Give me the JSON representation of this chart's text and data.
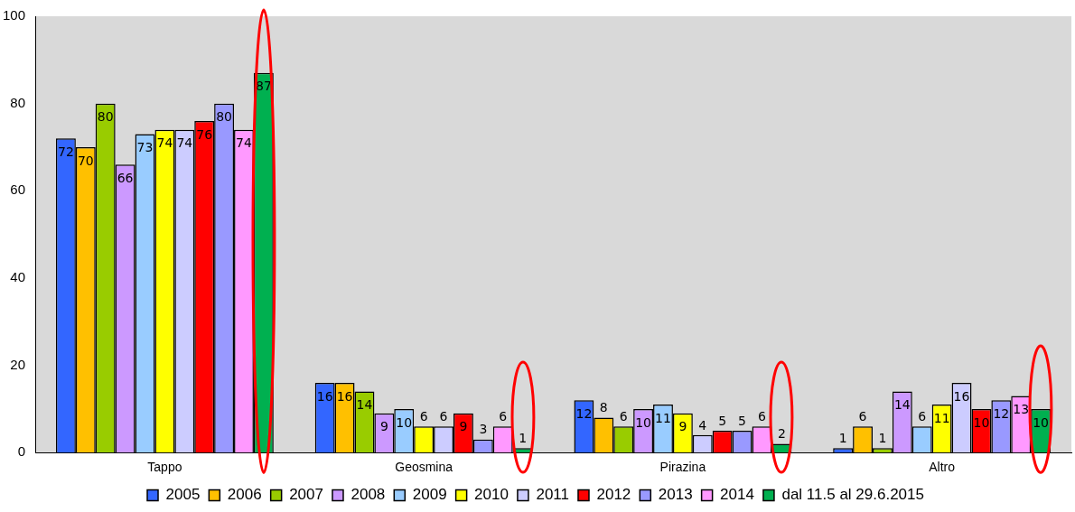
{
  "chart_data": {
    "type": "bar",
    "categories": [
      "Tappo",
      "Geosmina",
      "Pirazina",
      "Altro"
    ],
    "series": [
      {
        "name": "2005",
        "color": "#3366ff",
        "values": [
          72,
          16,
          12,
          1
        ]
      },
      {
        "name": "2006",
        "color": "#ffc000",
        "values": [
          70,
          16,
          8,
          6
        ]
      },
      {
        "name": "2007",
        "color": "#99cc00",
        "values": [
          80,
          14,
          6,
          1
        ]
      },
      {
        "name": "2008",
        "color": "#cc99ff",
        "values": [
          66,
          9,
          10,
          14
        ]
      },
      {
        "name": "2009",
        "color": "#99ccff",
        "values": [
          73,
          10,
          11,
          6
        ]
      },
      {
        "name": "2010",
        "color": "#ffff00",
        "values": [
          74,
          6,
          9,
          11
        ]
      },
      {
        "name": "2011",
        "color": "#ccccff",
        "values": [
          74,
          6,
          4,
          16
        ]
      },
      {
        "name": "2012",
        "color": "#ff0000",
        "values": [
          76,
          9,
          5,
          10
        ]
      },
      {
        "name": "2013",
        "color": "#9999ff",
        "values": [
          80,
          3,
          5,
          12
        ]
      },
      {
        "name": "2014",
        "color": "#ff99ff",
        "values": [
          74,
          6,
          6,
          13
        ]
      },
      {
        "name": "dal 11.5 al 29.6.2015",
        "color": "#00b050",
        "values": [
          87,
          1,
          2,
          10
        ]
      }
    ],
    "ylim": [
      0,
      100
    ],
    "yticks": [
      0,
      20,
      40,
      60,
      80,
      100
    ],
    "grid": false,
    "legend": "bottom",
    "data_labels": true
  }
}
